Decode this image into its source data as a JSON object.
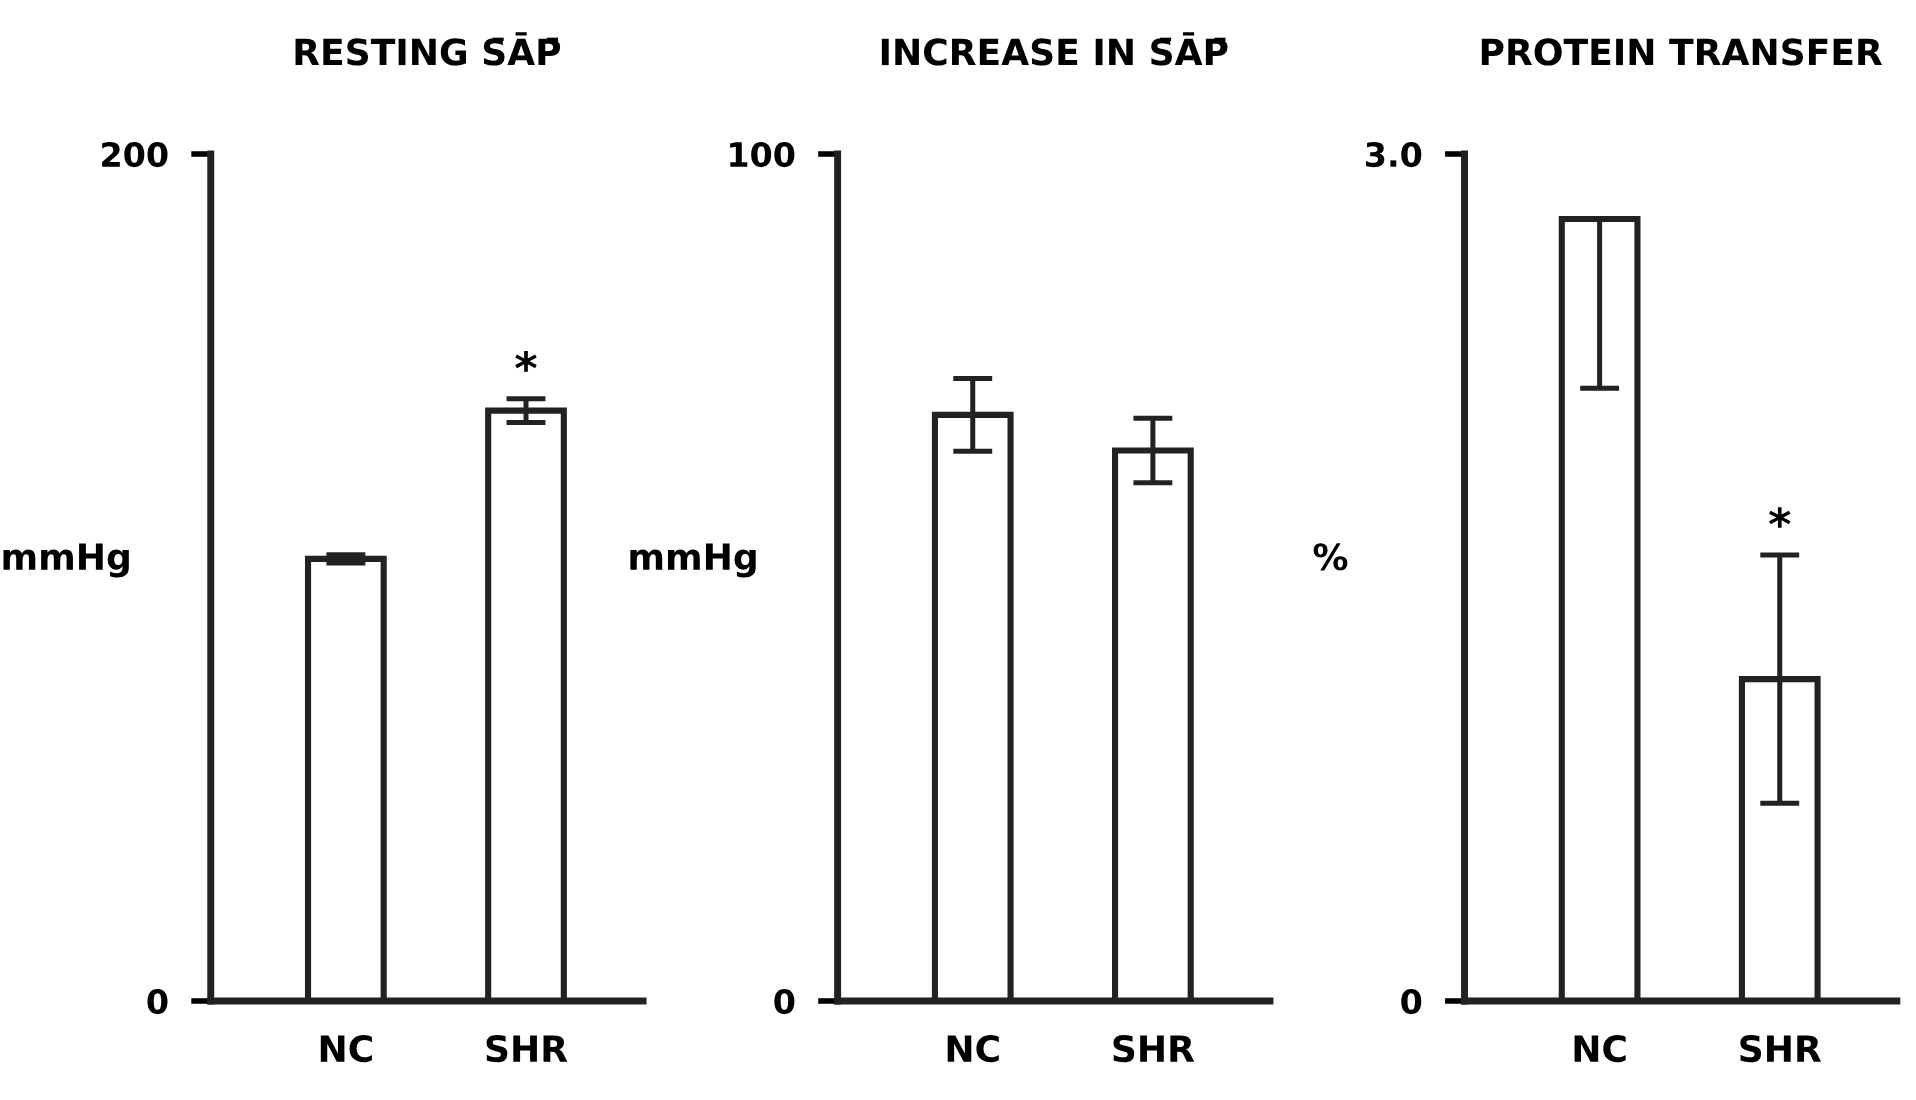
{
  "chart_data": [
    {
      "type": "bar",
      "title": "RESTING S̄ĀP̄",
      "ylabel": "mmHg",
      "categories": [
        "NC",
        "SHR"
      ],
      "values": [
        104.4,
        139.4
      ],
      "errors": [
        1,
        2.8
      ],
      "color": "#ffffff",
      "ylim": [
        0,
        200
      ],
      "yticks": [
        0,
        200
      ],
      "grid": false,
      "annotations": [
        {
          "text": "*",
          "x": "SHR",
          "y": 142.2
        }
      ]
    },
    {
      "type": "bar",
      "title": "INCREASE IN S̄ĀP̄",
      "ylabel": "mmHg",
      "categories": [
        "NC",
        "SHR"
      ],
      "values": [
        69.2,
        65.0
      ],
      "errors": [
        4.3,
        3.8
      ],
      "color": "#ffffff",
      "ylim": [
        0,
        100
      ],
      "yticks": [
        0,
        100
      ],
      "grid": false
    },
    {
      "type": "bar",
      "title": "PROTEIN TRANSFER",
      "ylabel": "%",
      "categories": [
        "NC",
        "SHR"
      ],
      "values": [
        2.77,
        1.14
      ],
      "errors": [
        [
          2.17,
          2.77
        ],
        [
          0.7,
          1.58
        ]
      ],
      "color": "#ffffff",
      "ylim": [
        0,
        3.0
      ],
      "yticks": [
        0,
        {
          "value": 3.0,
          "label": "3.0"
        }
      ],
      "grid": false,
      "annotations": [
        {
          "text": "*",
          "x": "SHR",
          "y": 1.58
        }
      ]
    }
  ]
}
